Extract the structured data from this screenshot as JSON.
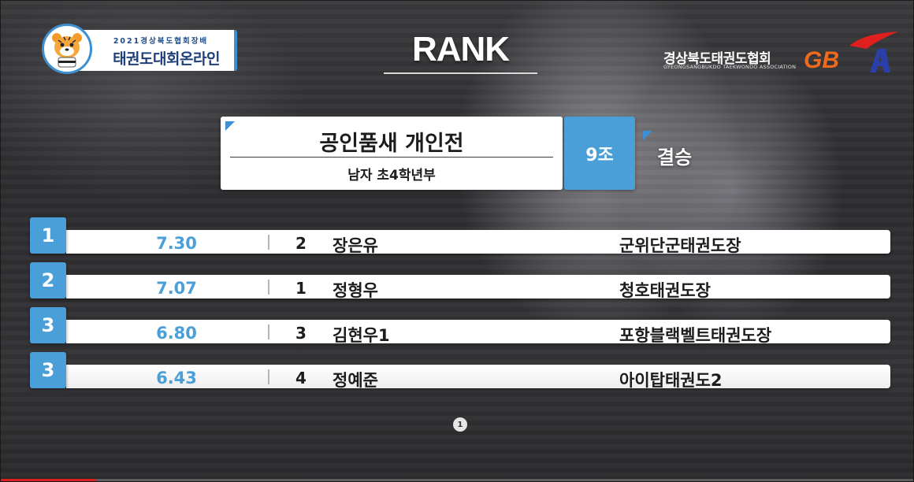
{
  "event_logo": {
    "subtitle": "2021경상북도협회장배",
    "title": "태권도대회온라인"
  },
  "header": {
    "title": "RANK"
  },
  "association": {
    "name": "경상북도태권도협회",
    "name_en": "GYEONGSANGBUKDO TAEKWONDO ASSOCIATION",
    "mark": "GBTA"
  },
  "event": {
    "title": "공인품새 개인전",
    "division": "남자 초4학년부",
    "group": "9조",
    "round": "결승"
  },
  "rankings": [
    {
      "rank": "1",
      "score": "7.30",
      "bib": "2",
      "name": "장은유",
      "club": "군위단군태권도장"
    },
    {
      "rank": "2",
      "score": "7.07",
      "bib": "1",
      "name": "정형우",
      "club": "청호태권도장"
    },
    {
      "rank": "3",
      "score": "6.80",
      "bib": "3",
      "name": "김현우1",
      "club": "포항블랙벨트태권도장"
    },
    {
      "rank": "3",
      "score": "6.43",
      "bib": "4",
      "name": "정예준",
      "club": "아이탑태권도2"
    }
  ],
  "pagination": {
    "current": "1"
  },
  "video": {
    "progress": 0.105
  },
  "colors": {
    "accent_blue": "#4a9fd9",
    "brand_navy": "#1d3f7a",
    "progress_red": "#e02020"
  }
}
